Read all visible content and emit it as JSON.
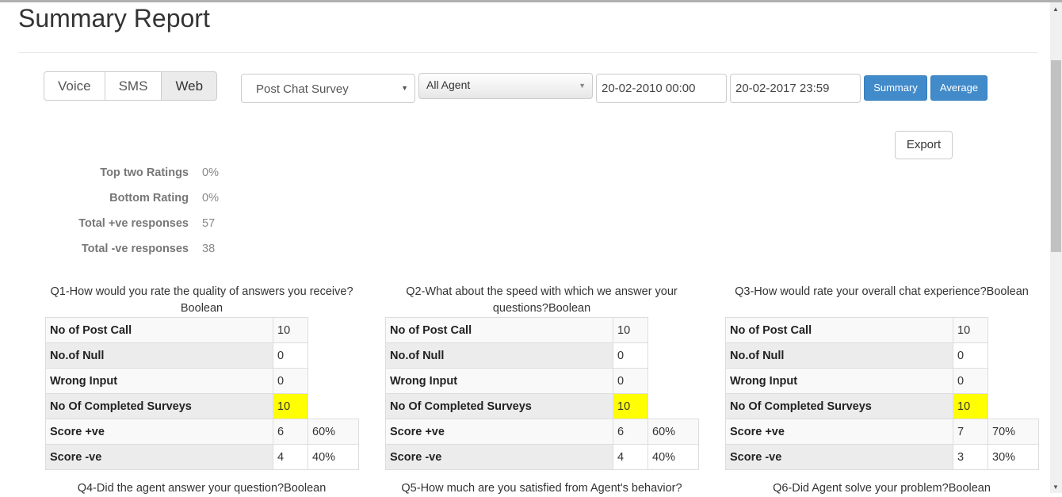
{
  "title": "Summary Report",
  "channels": [
    {
      "label": "Voice",
      "active": false
    },
    {
      "label": "SMS",
      "active": false
    },
    {
      "label": "Web",
      "active": true
    }
  ],
  "filters": {
    "survey": "Post Chat Survey",
    "agent": "All Agent",
    "from": "20-02-2010 00:00",
    "to": "20-02-2017 23:59",
    "summary_label": "Summary",
    "average_label": "Average",
    "export_label": "Export"
  },
  "stats": [
    {
      "label": "Top two Ratings",
      "value": "0%"
    },
    {
      "label": "Bottom Rating",
      "value": "0%"
    },
    {
      "label": "Total +ve responses",
      "value": "57"
    },
    {
      "label": "Total -ve responses",
      "value": "38"
    }
  ],
  "row_labels": [
    "No of Post Call",
    "No.of Null",
    "Wrong Input",
    "No Of Completed Surveys",
    "Score +ve",
    "Score -ve"
  ],
  "questions": [
    {
      "title": "Q1-How would you rate the quality of answers you receive?Boolean",
      "post_call": "10",
      "null": "0",
      "wrong": "0",
      "completed": "10",
      "pos": "6",
      "pos_pct": "60%",
      "neg": "4",
      "neg_pct": "40%"
    },
    {
      "title": "Q2-What about the speed with which we answer your questions?Boolean",
      "post_call": "10",
      "null": "0",
      "wrong": "0",
      "completed": "10",
      "pos": "6",
      "pos_pct": "60%",
      "neg": "4",
      "neg_pct": "40%"
    },
    {
      "title": "Q3-How would rate your overall chat experience?Boolean",
      "post_call": "10",
      "null": "0",
      "wrong": "0",
      "completed": "10",
      "pos": "7",
      "pos_pct": "70%",
      "neg": "3",
      "neg_pct": "30%"
    }
  ],
  "next_questions": [
    "Q4-Did the agent answer your question?Boolean",
    "Q5-How much are you satisfied from Agent's behavior?",
    "Q6-Did Agent solve your problem?Boolean"
  ],
  "colors": {
    "primary": "#428bca",
    "highlight": "#ffff00"
  }
}
